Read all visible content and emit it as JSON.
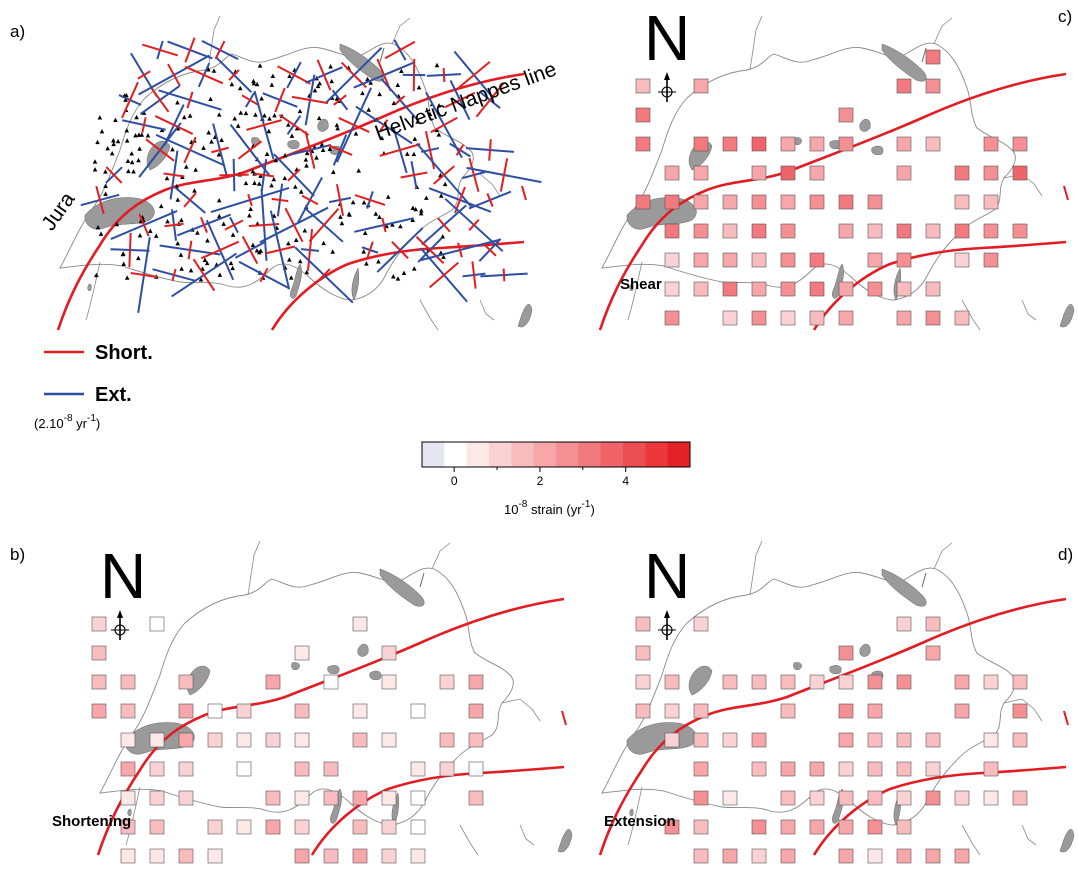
{
  "panels": {
    "a": {
      "letter": "a)"
    },
    "b": {
      "letter": "b)",
      "north": "N",
      "label": "Shortening"
    },
    "c": {
      "letter": "c)",
      "north": "N",
      "label": "Shear"
    },
    "d": {
      "letter": "d)",
      "north": "N",
      "label": "Extension"
    }
  },
  "geo_labels": {
    "jura": "Jura",
    "helvetic": "Helvetic Nappes line"
  },
  "legend": {
    "short_label": "Short.",
    "ext_label": "Ext.",
    "short_color": "#e02020",
    "ext_color": "#2d4ea3",
    "scale_text": "(2.10-8 yr-1)",
    "scale_base": "(2.10",
    "scale_exp1": "-8",
    "scale_mid": " yr",
    "scale_exp2": "-1",
    "scale_end": ")"
  },
  "colorbar": {
    "ticks": [
      "0",
      "2",
      "4"
    ],
    "label": "10-8 strain (yr-1)",
    "label_base": "10",
    "label_exp1": "-8",
    "label_mid": " strain (yr",
    "label_exp2": "-1",
    "label_end": ")",
    "min": -0.75,
    "max": 5.5,
    "colors": [
      "#e6e6f2",
      "#ffffff",
      "#fde8e8",
      "#fbd2d3",
      "#f9bcbe",
      "#f7a6a9",
      "#f49093",
      "#f27a7e",
      "#ef6468",
      "#ed4e53",
      "#ea383d",
      "#e52227"
    ]
  },
  "colors": {
    "fault": "#e31b23",
    "lake": "#9a9a9a",
    "border": "#888888"
  }
}
